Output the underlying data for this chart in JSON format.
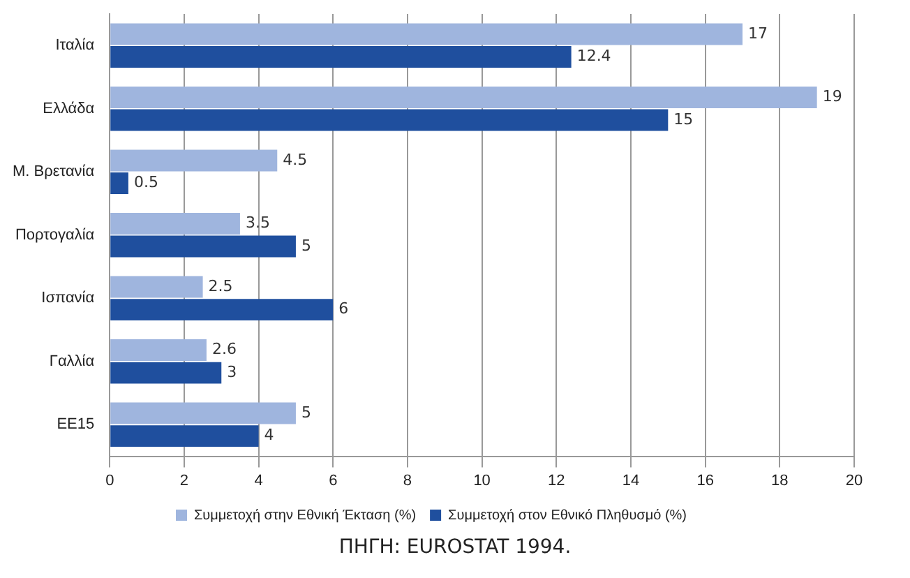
{
  "chart_data": {
    "type": "bar",
    "orientation": "horizontal",
    "categories": [
      "Ιταλία",
      "Ελλάδα",
      "Μ. Βρετανία",
      "Πορτογαλία",
      "Ισπανία",
      "Γαλλία",
      "ΕΕ15"
    ],
    "series": [
      {
        "name": "Συμμετοχή στην Εθνική Έκταση (%)",
        "color": "#9fb5de",
        "values": [
          17,
          19,
          4.5,
          3.5,
          2.5,
          2.6,
          5
        ]
      },
      {
        "name": "Συμμετοχή στον Εθνικό Πληθυσμό (%)",
        "color": "#1f4f9e",
        "values": [
          12.4,
          15,
          0.5,
          5,
          6,
          3,
          4
        ]
      }
    ],
    "xlim": [
      0,
      20
    ],
    "xticks": [
      0,
      2,
      4,
      6,
      8,
      10,
      12,
      14,
      16,
      18,
      20
    ],
    "grid": "x",
    "legend": "bottom",
    "data_labels": true,
    "annotations": [
      "ΠΗΓΗ: EUROSTAT 1994."
    ]
  }
}
